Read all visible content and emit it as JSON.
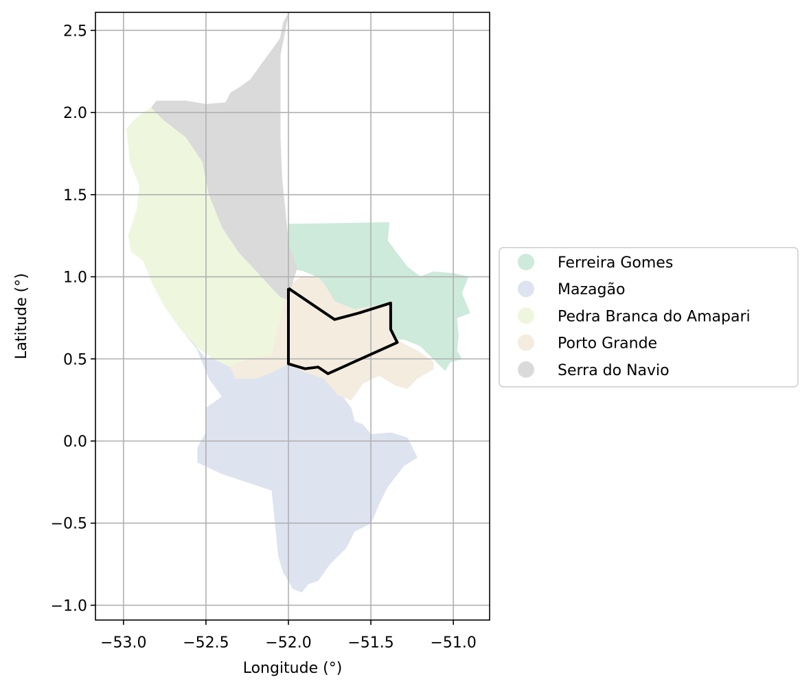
{
  "chart_data": {
    "type": "map",
    "xlabel": "Longitude (°)",
    "ylabel": "Latitude (°)",
    "xlim": [
      -53.17,
      -50.78
    ],
    "ylim": [
      -1.09,
      2.61
    ],
    "x_ticks": [
      -53.0,
      -52.5,
      -52.0,
      -51.5,
      -51.0
    ],
    "x_tick_labels": [
      "−53.0",
      "−52.5",
      "−52.0",
      "−51.5",
      "−51.0"
    ],
    "y_ticks": [
      -1.0,
      -0.5,
      0.0,
      0.5,
      1.0,
      1.5,
      2.0,
      2.5
    ],
    "y_tick_labels": [
      "−1.0",
      "−0.5",
      "0.0",
      "0.5",
      "1.0",
      "1.5",
      "2.0",
      "2.5"
    ],
    "grid": true,
    "legend_position": "right",
    "regions": [
      {
        "name": "Ferreira Gomes",
        "color": "#cdeadb",
        "polygon": [
          [
            -52.0,
            1.32
          ],
          [
            -51.39,
            1.33
          ],
          [
            -51.4,
            1.22
          ],
          [
            -51.28,
            1.06
          ],
          [
            -51.2,
            1.0
          ],
          [
            -51.12,
            1.03
          ],
          [
            -51.0,
            1.02
          ],
          [
            -50.91,
            1.0
          ],
          [
            -50.95,
            0.9
          ],
          [
            -50.9,
            0.78
          ],
          [
            -50.98,
            0.75
          ],
          [
            -50.97,
            0.64
          ],
          [
            -50.98,
            0.55
          ],
          [
            -50.95,
            0.5
          ],
          [
            -51.02,
            0.48
          ],
          [
            -51.05,
            0.43
          ],
          [
            -51.1,
            0.48
          ],
          [
            -51.2,
            0.58
          ],
          [
            -51.3,
            0.62
          ],
          [
            -51.38,
            0.62
          ],
          [
            -51.38,
            0.84
          ],
          [
            -51.6,
            0.8
          ],
          [
            -51.72,
            0.85
          ],
          [
            -51.82,
            1.0
          ],
          [
            -51.92,
            1.04
          ],
          [
            -52.0,
            1.05
          ]
        ]
      },
      {
        "name": "Mazagão",
        "color": "#dee3f0",
        "polygon": [
          [
            -52.32,
            0.49
          ],
          [
            -52.42,
            0.52
          ],
          [
            -52.5,
            0.5
          ],
          [
            -52.56,
            0.57
          ],
          [
            -52.65,
            0.68
          ],
          [
            -52.75,
            0.82
          ],
          [
            -52.62,
            0.75
          ],
          [
            -52.55,
            0.55
          ],
          [
            -52.48,
            0.38
          ],
          [
            -52.4,
            0.27
          ],
          [
            -52.5,
            0.2
          ],
          [
            -52.5,
            0.05
          ],
          [
            -52.55,
            -0.04
          ],
          [
            -52.55,
            -0.13
          ],
          [
            -52.4,
            -0.2
          ],
          [
            -52.25,
            -0.25
          ],
          [
            -52.1,
            -0.3
          ],
          [
            -52.08,
            -0.5
          ],
          [
            -52.06,
            -0.7
          ],
          [
            -52.03,
            -0.8
          ],
          [
            -51.97,
            -0.9
          ],
          [
            -51.92,
            -0.92
          ],
          [
            -51.88,
            -0.87
          ],
          [
            -51.82,
            -0.85
          ],
          [
            -51.75,
            -0.75
          ],
          [
            -51.65,
            -0.65
          ],
          [
            -51.6,
            -0.55
          ],
          [
            -51.5,
            -0.5
          ],
          [
            -51.45,
            -0.38
          ],
          [
            -51.4,
            -0.28
          ],
          [
            -51.3,
            -0.15
          ],
          [
            -51.22,
            -0.1
          ],
          [
            -51.28,
            0.02
          ],
          [
            -51.38,
            0.05
          ],
          [
            -51.5,
            0.04
          ],
          [
            -51.55,
            0.1
          ],
          [
            -51.6,
            0.12
          ],
          [
            -51.62,
            0.2
          ],
          [
            -51.68,
            0.28
          ],
          [
            -51.78,
            0.38
          ],
          [
            -51.9,
            0.42
          ],
          [
            -52.0,
            0.48
          ],
          [
            -52.1,
            0.42
          ],
          [
            -52.2,
            0.38
          ],
          [
            -52.3,
            0.38
          ]
        ]
      },
      {
        "name": "Pedra Branca do Amapari",
        "color": "#eef7dd",
        "polygon": [
          [
            -52.92,
            1.97
          ],
          [
            -52.83,
            2.03
          ],
          [
            -52.75,
            1.95
          ],
          [
            -52.62,
            1.85
          ],
          [
            -52.52,
            1.7
          ],
          [
            -52.48,
            1.5
          ],
          [
            -52.4,
            1.3
          ],
          [
            -52.3,
            1.18
          ],
          [
            -52.18,
            1.1
          ],
          [
            -52.05,
            1.0
          ],
          [
            -51.95,
            0.94
          ],
          [
            -51.85,
            0.95
          ],
          [
            -51.8,
            0.9
          ],
          [
            -51.72,
            0.85
          ],
          [
            -51.7,
            0.74
          ],
          [
            -51.75,
            0.62
          ],
          [
            -51.9,
            0.55
          ],
          [
            -52.05,
            0.52
          ],
          [
            -52.2,
            0.5
          ],
          [
            -52.35,
            0.45
          ],
          [
            -52.45,
            0.5
          ],
          [
            -52.55,
            0.57
          ],
          [
            -52.65,
            0.68
          ],
          [
            -52.75,
            0.82
          ],
          [
            -52.82,
            0.95
          ],
          [
            -52.88,
            1.1
          ],
          [
            -52.95,
            1.15
          ],
          [
            -52.97,
            1.25
          ],
          [
            -52.92,
            1.4
          ],
          [
            -52.9,
            1.55
          ],
          [
            -52.96,
            1.7
          ],
          [
            -52.98,
            1.9
          ]
        ]
      },
      {
        "name": "Porto Grande",
        "color": "#f3ecdf",
        "polygon": [
          [
            -52.0,
            0.94
          ],
          [
            -51.92,
            1.0
          ],
          [
            -51.82,
            1.0
          ],
          [
            -51.78,
            0.95
          ],
          [
            -51.72,
            0.85
          ],
          [
            -51.6,
            0.8
          ],
          [
            -51.38,
            0.84
          ],
          [
            -51.38,
            0.68
          ],
          [
            -51.32,
            0.6
          ],
          [
            -51.22,
            0.55
          ],
          [
            -51.12,
            0.48
          ],
          [
            -51.12,
            0.44
          ],
          [
            -51.22,
            0.38
          ],
          [
            -51.28,
            0.32
          ],
          [
            -51.35,
            0.34
          ],
          [
            -51.45,
            0.4
          ],
          [
            -51.55,
            0.35
          ],
          [
            -51.62,
            0.25
          ],
          [
            -51.7,
            0.28
          ],
          [
            -51.78,
            0.38
          ],
          [
            -51.9,
            0.42
          ],
          [
            -52.0,
            0.47
          ],
          [
            -52.1,
            0.42
          ],
          [
            -52.2,
            0.38
          ],
          [
            -52.32,
            0.38
          ],
          [
            -52.35,
            0.45
          ],
          [
            -52.25,
            0.5
          ],
          [
            -52.1,
            0.52
          ]
        ]
      },
      {
        "name": "Serra do Navio",
        "color": "#dadada",
        "polygon": [
          [
            -52.83,
            2.03
          ],
          [
            -52.8,
            2.07
          ],
          [
            -52.62,
            2.07
          ],
          [
            -52.5,
            2.05
          ],
          [
            -52.38,
            2.06
          ],
          [
            -52.35,
            2.12
          ],
          [
            -52.3,
            2.15
          ],
          [
            -52.23,
            2.2
          ],
          [
            -52.18,
            2.27
          ],
          [
            -52.1,
            2.38
          ],
          [
            -52.05,
            2.45
          ],
          [
            -52.03,
            2.55
          ],
          [
            -52.0,
            2.6
          ],
          [
            -52.05,
            2.35
          ],
          [
            -52.05,
            2.1
          ],
          [
            -52.05,
            1.85
          ],
          [
            -52.04,
            1.6
          ],
          [
            -52.02,
            1.4
          ],
          [
            -52.0,
            1.2
          ],
          [
            -51.95,
            1.05
          ],
          [
            -51.98,
            0.95
          ],
          [
            -52.0,
            0.86
          ],
          [
            -52.05,
            0.88
          ],
          [
            -52.18,
            1.02
          ],
          [
            -52.3,
            1.15
          ],
          [
            -52.4,
            1.3
          ],
          [
            -52.48,
            1.5
          ],
          [
            -52.52,
            1.7
          ],
          [
            -52.62,
            1.85
          ],
          [
            -52.75,
            1.95
          ]
        ]
      }
    ],
    "boundary_outline": {
      "color": "#000000",
      "polygon": [
        [
          -52.0,
          0.93
        ],
        [
          -51.72,
          0.74
        ],
        [
          -51.57,
          0.78
        ],
        [
          -51.38,
          0.84
        ],
        [
          -51.38,
          0.68
        ],
        [
          -51.34,
          0.6
        ],
        [
          -51.76,
          0.41
        ],
        [
          -51.82,
          0.45
        ],
        [
          -51.9,
          0.44
        ],
        [
          -52.0,
          0.47
        ],
        [
          -52.0,
          0.93
        ]
      ]
    }
  }
}
